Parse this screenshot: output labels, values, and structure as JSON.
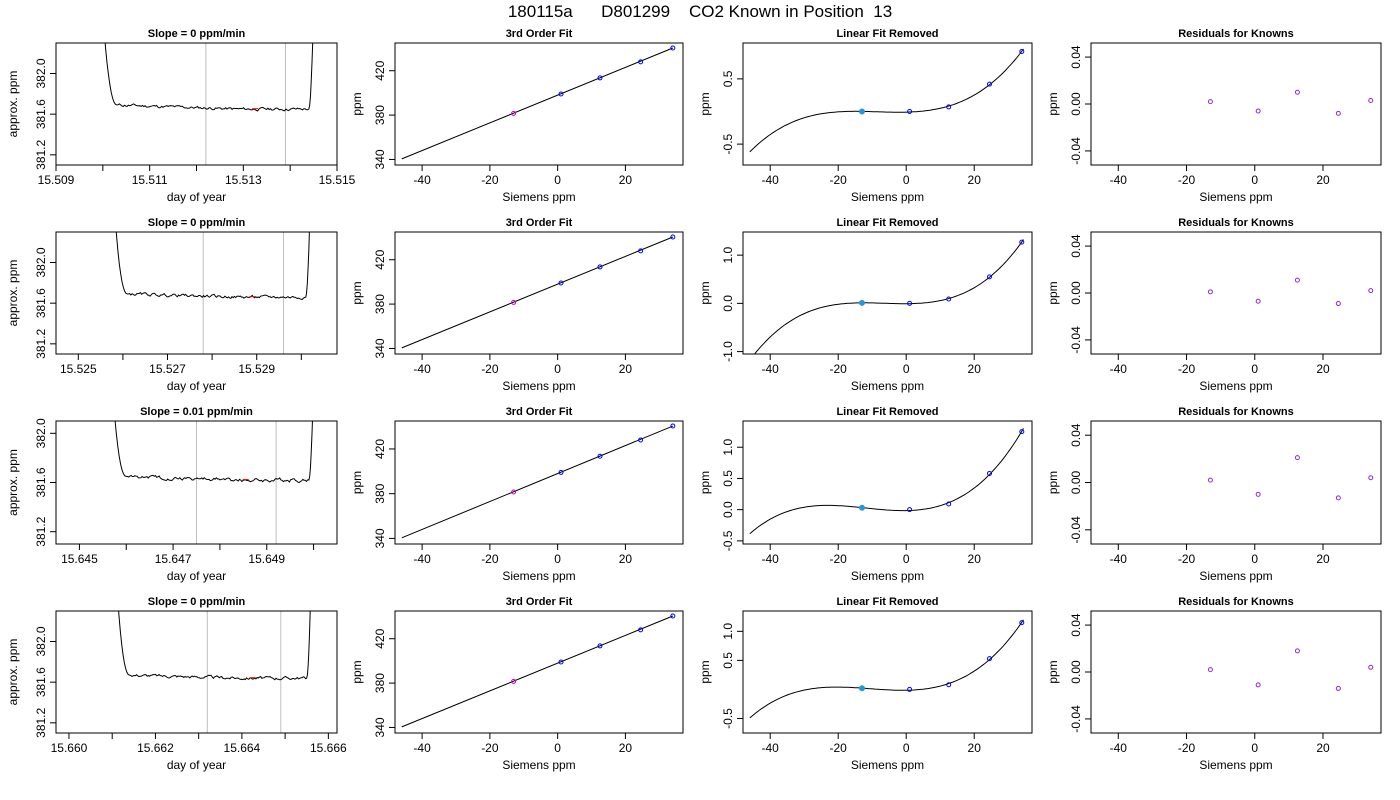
{
  "title": "180115a      D801299    CO2 Known in Position  13",
  "colors": {
    "line": "#000000",
    "vline": "#bebebe",
    "spike": "#ff0000",
    "point_blue": "#0000ff",
    "point_cyan": "#2299dd",
    "point_magenta": "#cc00cc",
    "residual": "#8a2be2"
  },
  "chart_data": [
    {
      "type": "line",
      "title": "Slope =  0  ppm/min",
      "xlabel": "day of year",
      "ylabel": "approx. ppm",
      "xlim": [
        15.509,
        15.515
      ],
      "ylim": [
        381.1,
        382.3
      ],
      "xticks": [
        "15.509",
        "15.511",
        "15.513",
        "15.515"
      ],
      "xtick_values": [
        15.509,
        15.511,
        15.513,
        15.515
      ],
      "yticks": [
        "381.2",
        "381.6",
        "382.0"
      ],
      "ytick_values": [
        381.2,
        381.6,
        382.0
      ],
      "minor_xticks": [
        15.51,
        15.512,
        15.514
      ],
      "vlines": [
        15.5122,
        15.5139
      ],
      "x_start": 15.51,
      "rise_end": 15.5103,
      "x_end": 15.5145,
      "fall_start": 15.5144,
      "baseline": 381.69,
      "level": 381.65,
      "noise": 0.012
    },
    {
      "type": "scatter",
      "title": "3rd Order Fit",
      "xlabel": "Siemens ppm",
      "ylabel": "ppm",
      "xlim": [
        -48,
        37
      ],
      "ylim": [
        335,
        445
      ],
      "xticks": [
        "-40",
        "-20",
        "0",
        "20"
      ],
      "xtick_values": [
        -40,
        -20,
        0,
        20
      ],
      "yticks": [
        "340",
        "380",
        "420"
      ],
      "ytick_values": [
        340,
        380,
        420
      ],
      "fit": [
        -46,
        340.5,
        34,
        440.5
      ],
      "x": [
        -13,
        1,
        12.5,
        24.5,
        34
      ],
      "y": [
        381.5,
        399,
        413.5,
        428,
        440.5
      ]
    },
    {
      "type": "scatter",
      "title": "Linear Fit Removed",
      "xlabel": "Siemens ppm",
      "ylabel": "ppm",
      "xlim": [
        -48,
        37
      ],
      "ylim": [
        -0.82,
        1.05
      ],
      "xticks": [
        "-40",
        "-20",
        "0",
        "20"
      ],
      "xtick_values": [
        -40,
        -20,
        0,
        20
      ],
      "yticks": [
        "-0.5",
        "0.5"
      ],
      "ytick_values": [
        -0.5,
        0.5
      ],
      "x": [
        -13,
        1,
        12.5,
        24.5,
        34
      ],
      "y": [
        0,
        0,
        0.07,
        0.42,
        0.92
      ]
    },
    {
      "type": "scatter",
      "title": "Residuals for Knowns",
      "xlabel": "Siemens ppm",
      "ylabel": "ppm",
      "xlim": [
        -48,
        37
      ],
      "ylim": [
        -0.052,
        0.052
      ],
      "xticks": [
        "-40",
        "-20",
        "0",
        "20"
      ],
      "xtick_values": [
        -40,
        -20,
        0,
        20
      ],
      "yticks": [
        "-0.04",
        "0.00",
        "0.04"
      ],
      "ytick_values": [
        -0.04,
        0.0,
        0.04
      ],
      "x": [
        -13,
        1,
        12.5,
        24.5,
        34
      ],
      "y": [
        0.002,
        -0.006,
        0.01,
        -0.008,
        0.003
      ]
    },
    {
      "type": "line",
      "title": "Slope =  0  ppm/min",
      "xlabel": "day of year",
      "ylabel": "approx. ppm",
      "xlim": [
        15.5245,
        15.5308
      ],
      "ylim": [
        381.1,
        382.3
      ],
      "xticks": [
        "15.525",
        "15.527",
        "15.529"
      ],
      "xtick_values": [
        15.525,
        15.527,
        15.529
      ],
      "yticks": [
        "381.2",
        "381.6",
        "382.0"
      ],
      "ytick_values": [
        381.2,
        381.6,
        382.0
      ],
      "minor_xticks": [
        15.526,
        15.528,
        15.53
      ],
      "vlines": [
        15.5278,
        15.5296
      ],
      "x_start": 15.5258,
      "rise_end": 15.5261,
      "x_end": 15.5302,
      "fall_start": 15.5301,
      "baseline": 381.69,
      "level": 381.66,
      "noise": 0.012
    },
    {
      "type": "scatter",
      "title": "3rd Order Fit",
      "xlabel": "Siemens ppm",
      "ylabel": "ppm",
      "xlim": [
        -48,
        37
      ],
      "ylim": [
        335,
        445
      ],
      "xticks": [
        "-40",
        "-20",
        "0",
        "20"
      ],
      "xtick_values": [
        -40,
        -20,
        0,
        20
      ],
      "yticks": [
        "340",
        "380",
        "420"
      ],
      "ytick_values": [
        340,
        380,
        420
      ],
      "fit": [
        -46,
        340.5,
        34,
        440.5
      ],
      "x": [
        -13,
        1,
        12.5,
        24.5,
        34
      ],
      "y": [
        381.5,
        399,
        413.5,
        428,
        440.5
      ]
    },
    {
      "type": "scatter",
      "title": "Linear Fit Removed",
      "xlabel": "Siemens ppm",
      "ylabel": "ppm",
      "xlim": [
        -48,
        37
      ],
      "ylim": [
        -1.05,
        1.48
      ],
      "xticks": [
        "-40",
        "-20",
        "0",
        "20"
      ],
      "xtick_values": [
        -40,
        -20,
        0,
        20
      ],
      "yticks": [
        "-1.0",
        "0.0",
        "1.0"
      ],
      "ytick_values": [
        -1.0,
        0.0,
        1.0
      ],
      "x": [
        -13,
        1,
        12.5,
        24.5,
        34
      ],
      "y": [
        0.01,
        0,
        0.09,
        0.55,
        1.27
      ]
    },
    {
      "type": "scatter",
      "title": "Residuals for Knowns",
      "xlabel": "Siemens ppm",
      "ylabel": "ppm",
      "xlim": [
        -48,
        37
      ],
      "ylim": [
        -0.052,
        0.052
      ],
      "xticks": [
        "-40",
        "-20",
        "0",
        "20"
      ],
      "xtick_values": [
        -40,
        -20,
        0,
        20
      ],
      "yticks": [
        "-0.04",
        "0.00",
        "0.04"
      ],
      "ytick_values": [
        -0.04,
        0.0,
        0.04
      ],
      "x": [
        -13,
        1,
        12.5,
        24.5,
        34
      ],
      "y": [
        0.001,
        -0.007,
        0.011,
        -0.009,
        0.002
      ]
    },
    {
      "type": "line",
      "title": "Slope =  0.01  ppm/min",
      "xlabel": "day of year",
      "ylabel": "approx. ppm",
      "xlim": [
        15.6445,
        15.6505
      ],
      "ylim": [
        381.1,
        382.1
      ],
      "xticks": [
        "15.645",
        "15.647",
        "15.649"
      ],
      "xtick_values": [
        15.645,
        15.647,
        15.649
      ],
      "yticks": [
        "381.2",
        "381.6",
        "382.0"
      ],
      "ytick_values": [
        381.2,
        381.6,
        382.0
      ],
      "minor_xticks": [
        15.646,
        15.648,
        15.65
      ],
      "vlines": [
        15.6475,
        15.6492
      ],
      "x_start": 15.6457,
      "rise_end": 15.646,
      "x_end": 15.65,
      "fall_start": 15.6499,
      "baseline": 381.65,
      "level": 381.62,
      "noise": 0.012
    },
    {
      "type": "scatter",
      "title": "3rd Order Fit",
      "xlabel": "Siemens ppm",
      "ylabel": "ppm",
      "xlim": [
        -48,
        37
      ],
      "ylim": [
        335,
        445
      ],
      "xticks": [
        "-40",
        "-20",
        "0",
        "20"
      ],
      "xtick_values": [
        -40,
        -20,
        0,
        20
      ],
      "yticks": [
        "340",
        "380",
        "420"
      ],
      "ytick_values": [
        340,
        380,
        420
      ],
      "fit": [
        -46,
        340.5,
        34,
        440.5
      ],
      "x": [
        -13,
        1,
        12.5,
        24.5,
        34
      ],
      "y": [
        381.5,
        399,
        413.5,
        428,
        440.5
      ]
    },
    {
      "type": "scatter",
      "title": "Linear Fit Removed",
      "xlabel": "Siemens ppm",
      "ylabel": "ppm",
      "xlim": [
        -48,
        37
      ],
      "ylim": [
        -0.55,
        1.42
      ],
      "xticks": [
        "-40",
        "-20",
        "0",
        "20"
      ],
      "xtick_values": [
        -40,
        -20,
        0,
        20
      ],
      "yticks": [
        "-0.5",
        "0.0",
        "0.5",
        "1.0"
      ],
      "ytick_values": [
        -0.5,
        0.0,
        0.5,
        1.0
      ],
      "x": [
        -13,
        1,
        12.5,
        24.5,
        34
      ],
      "y": [
        0.03,
        0,
        0.09,
        0.58,
        1.25
      ]
    },
    {
      "type": "scatter",
      "title": "Residuals for Knowns",
      "xlabel": "Siemens ppm",
      "ylabel": "ppm",
      "xlim": [
        -48,
        37
      ],
      "ylim": [
        -0.052,
        0.052
      ],
      "xticks": [
        "-40",
        "-20",
        "0",
        "20"
      ],
      "xtick_values": [
        -40,
        -20,
        0,
        20
      ],
      "yticks": [
        "-0.04",
        "0.00",
        "0.04"
      ],
      "ytick_values": [
        -0.04,
        0.0,
        0.04
      ],
      "x": [
        -13,
        1,
        12.5,
        24.5,
        34
      ],
      "y": [
        0.002,
        -0.01,
        0.021,
        -0.013,
        0.004
      ]
    },
    {
      "type": "line",
      "title": "Slope =  0  ppm/min",
      "xlabel": "day of year",
      "ylabel": "approx. ppm",
      "xlim": [
        15.6597,
        15.6662
      ],
      "ylim": [
        381.1,
        382.3
      ],
      "xticks": [
        "15.660",
        "15.662",
        "15.664",
        "15.666"
      ],
      "xtick_values": [
        15.66,
        15.662,
        15.664,
        15.666
      ],
      "yticks": [
        "381.2",
        "381.6",
        "382.0"
      ],
      "ytick_values": [
        381.2,
        381.6,
        382.0
      ],
      "minor_xticks": [
        15.661,
        15.663,
        15.665
      ],
      "vlines": [
        15.6632,
        15.6649
      ],
      "x_start": 15.6611,
      "rise_end": 15.6614,
      "x_end": 15.6656,
      "fall_start": 15.6655,
      "baseline": 381.67,
      "level": 381.64,
      "noise": 0.012
    },
    {
      "type": "scatter",
      "title": "3rd Order Fit",
      "xlabel": "Siemens ppm",
      "ylabel": "ppm",
      "xlim": [
        -48,
        37
      ],
      "ylim": [
        335,
        445
      ],
      "xticks": [
        "-40",
        "-20",
        "0",
        "20"
      ],
      "xtick_values": [
        -40,
        -20,
        0,
        20
      ],
      "yticks": [
        "340",
        "380",
        "420"
      ],
      "ytick_values": [
        340,
        380,
        420
      ],
      "fit": [
        -46,
        340.5,
        34,
        440.5
      ],
      "x": [
        -13,
        1,
        12.5,
        24.5,
        34
      ],
      "y": [
        381.5,
        399,
        413.5,
        428,
        440.5
      ]
    },
    {
      "type": "scatter",
      "title": "Linear Fit Removed",
      "xlabel": "Siemens ppm",
      "ylabel": "ppm",
      "xlim": [
        -48,
        37
      ],
      "ylim": [
        -0.75,
        1.35
      ],
      "xticks": [
        "-40",
        "-20",
        "0",
        "20"
      ],
      "xtick_values": [
        -40,
        -20,
        0,
        20
      ],
      "yticks": [
        "-0.5",
        "0.5",
        "1.0"
      ],
      "ytick_values": [
        -0.5,
        0.5,
        1.0
      ],
      "x": [
        -13,
        1,
        12.5,
        24.5,
        34
      ],
      "y": [
        0.02,
        0,
        0.08,
        0.53,
        1.15
      ]
    },
    {
      "type": "scatter",
      "title": "Residuals for Knowns",
      "xlabel": "Siemens ppm",
      "ylabel": "ppm",
      "xlim": [
        -48,
        37
      ],
      "ylim": [
        -0.052,
        0.052
      ],
      "xticks": [
        "-40",
        "-20",
        "0",
        "20"
      ],
      "xtick_values": [
        -40,
        -20,
        0,
        20
      ],
      "yticks": [
        "-0.04",
        "0.00",
        "0.04"
      ],
      "ytick_values": [
        -0.04,
        0.0,
        0.04
      ],
      "x": [
        -13,
        1,
        12.5,
        24.5,
        34
      ],
      "y": [
        0.002,
        -0.011,
        0.018,
        -0.014,
        0.004
      ]
    }
  ]
}
